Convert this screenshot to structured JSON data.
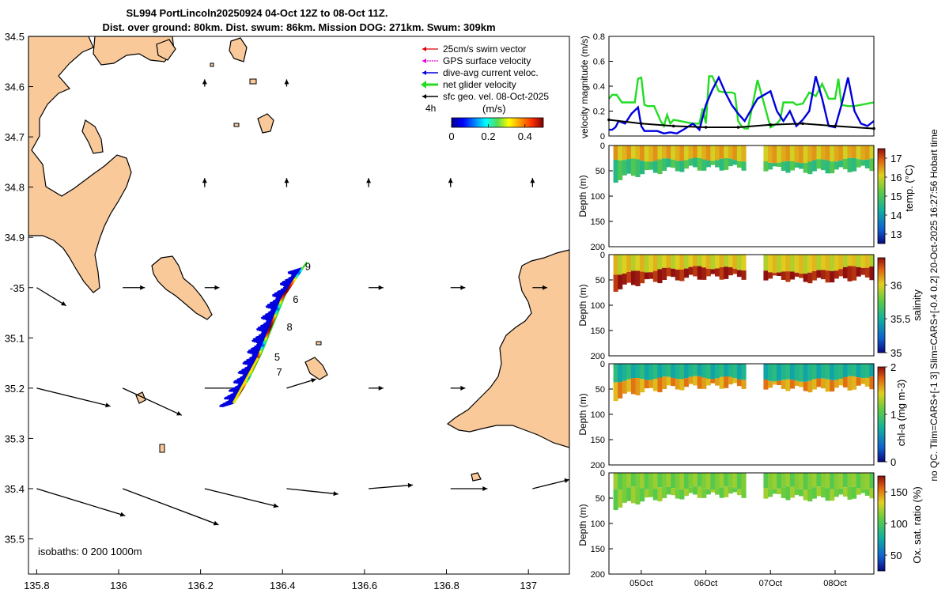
{
  "title": {
    "line1": "SL994 PortLincoln20250924 04-Oct 12Z to 08-Oct 11Z.",
    "line2": "Dist. over ground: 80km. Dist. swum: 86km. Mission DOG: 271km. Swum: 309km"
  },
  "footer_note": "no QC. Tlim=CARS+[-1 3] Slim=CARS+[-0.4 0.2] 20-Oct-2025 16:27:56 Hobart time",
  "colors": {
    "land": "#f9c99a",
    "red": "#e00000",
    "magenta": "#e000e0",
    "blue": "#0000dd",
    "green": "#22dd22",
    "black": "#000000",
    "yellow": "#f0e000"
  },
  "chart_data": [
    {
      "type": "map",
      "name": "track-map",
      "xlim": [
        135.78,
        137.1
      ],
      "ylim": [
        -35.57,
        -34.5
      ],
      "xticks": [
        135.8,
        136,
        136.2,
        136.4,
        136.6,
        136.8,
        137
      ],
      "xtick_labels": [
        "135.8",
        "136",
        "136.2",
        "136.4",
        "136.6",
        "136.8",
        "137"
      ],
      "yticks": [
        -34.5,
        -34.6,
        -34.7,
        -34.8,
        -34.9,
        -35.0,
        -35.1,
        -35.2,
        -35.3,
        -35.4,
        -35.5
      ],
      "ytick_labels": [
        "34.5",
        "34.6",
        "34.7",
        "34.8",
        "34.9",
        "-35",
        "35.1",
        "35.2",
        "35.3",
        "35.4",
        "35.5"
      ],
      "legend": {
        "items": [
          {
            "label": "25cm/s swim vector",
            "color": "red"
          },
          {
            "label": "GPS surface velocity",
            "color": "magenta"
          },
          {
            "label": "dive-avg current veloc.",
            "color": "blue"
          },
          {
            "label": "net glider velocity",
            "color": "green"
          },
          {
            "label": "sfc geo. vel. 08-Oct-2025",
            "color": "black"
          }
        ],
        "tag": "4h",
        "colorbar_title": "(m/s)",
        "colorbar_ticks": [
          "0",
          "0.2",
          "0.4"
        ],
        "colorbar_range": [
          0,
          0.5
        ]
      },
      "isobaths_text": "isobaths: 0   200  1000m",
      "track": [
        [
          136.28,
          -35.23
        ],
        [
          136.31,
          -35.19
        ],
        [
          136.34,
          -35.14
        ],
        [
          136.37,
          -35.08
        ],
        [
          136.4,
          -35.02
        ],
        [
          136.45,
          -34.96
        ]
      ],
      "day_labels": [
        {
          "text": "9",
          "lon": 136.455,
          "lat": -34.965
        },
        {
          "text": "6",
          "lon": 136.425,
          "lat": -35.03
        },
        {
          "text": "8",
          "lon": 136.41,
          "lat": -35.085
        },
        {
          "text": "5",
          "lon": 136.38,
          "lat": -35.145
        },
        {
          "text": "7",
          "lon": 136.385,
          "lat": -35.175
        }
      ],
      "geo_vectors": [
        {
          "lon": 135.8,
          "lat": -35.0,
          "u": 0.02,
          "v": -0.01
        },
        {
          "lon": 136.01,
          "lat": -35.0,
          "u": 0.015,
          "v": 0.0
        },
        {
          "lon": 136.21,
          "lat": -35.0,
          "u": 0.01,
          "v": 0.0
        },
        {
          "lon": 136.61,
          "lat": -35.0,
          "u": 0.01,
          "v": 0.0
        },
        {
          "lon": 136.81,
          "lat": -35.0,
          "u": 0.01,
          "v": 0.0
        },
        {
          "lon": 137.01,
          "lat": -35.0,
          "u": 0.01,
          "v": 0.0
        },
        {
          "lon": 135.8,
          "lat": -35.2,
          "u": 0.05,
          "v": -0.01
        },
        {
          "lon": 136.01,
          "lat": -35.2,
          "u": 0.04,
          "v": -0.015
        },
        {
          "lon": 136.21,
          "lat": -35.2,
          "u": 0.025,
          "v": 0.0
        },
        {
          "lon": 136.41,
          "lat": -35.2,
          "u": 0.02,
          "v": 0.005
        },
        {
          "lon": 136.61,
          "lat": -35.2,
          "u": 0.01,
          "v": 0.0
        },
        {
          "lon": 136.81,
          "lat": -35.2,
          "u": 0.01,
          "v": 0.0
        },
        {
          "lon": 135.8,
          "lat": -35.4,
          "u": 0.06,
          "v": -0.015
        },
        {
          "lon": 136.01,
          "lat": -35.4,
          "u": 0.065,
          "v": -0.02
        },
        {
          "lon": 136.21,
          "lat": -35.4,
          "u": 0.05,
          "v": -0.01
        },
        {
          "lon": 136.41,
          "lat": -35.4,
          "u": 0.035,
          "v": -0.003
        },
        {
          "lon": 136.61,
          "lat": -35.4,
          "u": 0.03,
          "v": 0.002
        },
        {
          "lon": 136.81,
          "lat": -35.4,
          "u": 0.025,
          "v": 0.0
        },
        {
          "lon": 137.01,
          "lat": -35.4,
          "u": 0.025,
          "v": 0.005
        },
        {
          "lon": 136.21,
          "lat": -34.8,
          "u": 0.0,
          "v": 0.005
        },
        {
          "lon": 136.41,
          "lat": -34.8,
          "u": 0.0,
          "v": 0.005
        },
        {
          "lon": 136.61,
          "lat": -34.8,
          "u": 0.0,
          "v": 0.005
        },
        {
          "lon": 136.81,
          "lat": -34.8,
          "u": 0.0,
          "v": 0.005
        },
        {
          "lon": 137.01,
          "lat": -34.8,
          "u": 0.0,
          "v": 0.005
        },
        {
          "lon": 136.21,
          "lat": -34.6,
          "u": 0.0,
          "v": 0.004
        },
        {
          "lon": 136.41,
          "lat": -34.6,
          "u": 0.0,
          "v": 0.004
        }
      ]
    },
    {
      "type": "line",
      "name": "velocity-magnitude",
      "ylabel": "velocity magnitude (m/s)",
      "ylim": [
        0,
        0.8
      ],
      "yticks": [
        0,
        0.2,
        0.4,
        0.6,
        0.8
      ],
      "ytick_labels": [
        "0",
        "0.2",
        "0.4",
        "0.6",
        "0.8"
      ],
      "xlim_days": [
        0,
        4.1
      ],
      "series": [
        {
          "name": "net glider velocity",
          "color": "green",
          "x": [
            0,
            0.05,
            0.12,
            0.2,
            0.3,
            0.4,
            0.45,
            0.5,
            0.55,
            0.6,
            0.7,
            0.8,
            0.85,
            0.9,
            0.95,
            1.0,
            1.1,
            1.2,
            1.3,
            1.4,
            1.45,
            1.5,
            1.55,
            1.6,
            1.7,
            1.8,
            1.9,
            1.95,
            2.0,
            2.05,
            2.1,
            2.15,
            2.3,
            2.5,
            2.6,
            2.65,
            2.7,
            2.8,
            2.85,
            2.9,
            3.0,
            3.1,
            3.2,
            3.3,
            3.4,
            3.5,
            3.55,
            3.6,
            3.7,
            3.8,
            3.9,
            4.1
          ],
          "y": [
            0.3,
            0.33,
            0.33,
            0.27,
            0.27,
            0.27,
            0.46,
            0.47,
            0.25,
            0.24,
            0.24,
            0.12,
            0.08,
            0.17,
            0.1,
            0.13,
            0.12,
            0.11,
            0.1,
            0.1,
            0.22,
            0.1,
            0.48,
            0.48,
            0.36,
            0.35,
            0.35,
            0.34,
            0.12,
            0.08,
            0.06,
            0.06,
            0.45,
            0.07,
            0.1,
            0.13,
            0.27,
            0.27,
            0.27,
            0.25,
            0.26,
            0.35,
            0.32,
            0.42,
            0.3,
            0.3,
            0.46,
            0.25,
            0.24,
            0.24,
            0.25,
            0.27
          ]
        },
        {
          "name": "dive-avg current veloc.",
          "color": "blue",
          "x": [
            0,
            0.05,
            0.1,
            0.15,
            0.25,
            0.35,
            0.45,
            0.5,
            0.55,
            0.65,
            0.75,
            0.85,
            0.95,
            1.05,
            1.15,
            1.3,
            1.4,
            1.5,
            1.6,
            1.7,
            1.8,
            1.9,
            2.0,
            2.1,
            2.3,
            2.5,
            2.6,
            2.7,
            2.8,
            2.9,
            3.0,
            3.1,
            3.2,
            3.3,
            3.4,
            3.5,
            3.6,
            3.7,
            3.8,
            3.9,
            4.0,
            4.1
          ],
          "y": [
            0.05,
            0.05,
            0.07,
            0.12,
            0.1,
            0.18,
            0.23,
            0.08,
            0.04,
            0.04,
            0.04,
            0.02,
            0.03,
            0.02,
            0.05,
            0.1,
            0.05,
            0.25,
            0.37,
            0.47,
            0.35,
            0.25,
            0.18,
            0.12,
            0.3,
            0.36,
            0.2,
            0.12,
            0.2,
            0.08,
            0.13,
            0.2,
            0.48,
            0.3,
            0.08,
            0.07,
            0.25,
            0.47,
            0.2,
            0.1,
            0.08,
            0.12
          ]
        },
        {
          "name": "sfc geo. vel.",
          "color": "black",
          "x": [
            0,
            0.5,
            1.0,
            1.5,
            2.0,
            2.5,
            3.0,
            3.5,
            4.1
          ],
          "y": [
            0.13,
            0.1,
            0.08,
            0.07,
            0.07,
            0.09,
            0.1,
            0.08,
            0.06
          ]
        }
      ]
    },
    {
      "type": "heatmap",
      "name": "temperature-section",
      "ylabel": "Depth (m)",
      "ylim": [
        0,
        200
      ],
      "yticks": [
        0,
        50,
        100,
        150,
        200
      ],
      "ytick_labels": [
        "0",
        "50",
        "100",
        "150",
        "200"
      ],
      "colorbar_label": "temp. (°C)",
      "clim": [
        12.5,
        17.5
      ],
      "cticks": [
        13,
        14,
        15,
        16,
        17
      ],
      "ctick_labels": [
        "13",
        "14",
        "15",
        "16",
        "17"
      ],
      "layer_values": [
        16.3,
        14.8
      ],
      "thermocline_depth_m": [
        25,
        30,
        28,
        27,
        28,
        30,
        34,
        30,
        28,
        24
      ],
      "bottom_depth_m": [
        70,
        55,
        48,
        45,
        44,
        44,
        48,
        52,
        48,
        44
      ]
    },
    {
      "type": "heatmap",
      "name": "salinity-section",
      "ylabel": "Depth (m)",
      "ylim": [
        0,
        200
      ],
      "yticks": [
        0,
        50,
        100,
        150,
        200
      ],
      "ytick_labels": [
        "0",
        "50",
        "100",
        "150",
        "200"
      ],
      "colorbar_label": "salinity",
      "clim": [
        35.0,
        36.4
      ],
      "cticks": [
        35,
        35.5,
        36
      ],
      "ctick_labels": [
        "35",
        "35.5",
        "36"
      ],
      "layer_values": [
        36.0,
        36.38
      ],
      "thermocline_depth_m": [
        38,
        34,
        28,
        25,
        27,
        30,
        36,
        34,
        26,
        22
      ],
      "bottom_depth_m": [
        70,
        55,
        48,
        45,
        44,
        44,
        48,
        52,
        48,
        44
      ]
    },
    {
      "type": "heatmap",
      "name": "chla-section",
      "ylabel": "Depth (m)",
      "ylim": [
        0,
        200
      ],
      "yticks": [
        0,
        50,
        100,
        150,
        200
      ],
      "ytick_labels": [
        "0",
        "50",
        "100",
        "150",
        "200"
      ],
      "colorbar_label": "chl-a (mg m-3)",
      "clim": [
        0,
        2
      ],
      "cticks": [
        0,
        1,
        2
      ],
      "ctick_labels": [
        "0",
        "1",
        "2"
      ],
      "layer_values": [
        0.75,
        1.6
      ],
      "thermocline_depth_m": [
        35,
        30,
        28,
        27,
        28,
        30,
        34,
        32,
        28,
        24
      ],
      "bottom_depth_m": [
        70,
        55,
        48,
        45,
        44,
        44,
        48,
        52,
        48,
        44
      ]
    },
    {
      "type": "heatmap",
      "name": "oxygen-section",
      "ylabel": "Depth (m)",
      "ylim": [
        0,
        200
      ],
      "yticks": [
        0,
        50,
        100,
        150,
        200
      ],
      "ytick_labels": [
        "0",
        "50",
        "100",
        "150",
        "200"
      ],
      "colorbar_label": "Ox. sat. ratio (%)",
      "clim": [
        25,
        175
      ],
      "cticks": [
        50,
        100,
        150
      ],
      "ctick_labels": [
        "50",
        "100",
        "150"
      ],
      "layer_values": [
        112,
        112
      ],
      "thermocline_depth_m": [
        30,
        30,
        30,
        30,
        30,
        30,
        30,
        30,
        30,
        30
      ],
      "bottom_depth_m": [
        70,
        55,
        48,
        45,
        44,
        44,
        48,
        52,
        48,
        44
      ],
      "xticks_days": [
        0.5,
        1.5,
        2.5,
        3.5
      ],
      "xtick_labels": [
        "05Oct",
        "06Oct",
        "07Oct",
        "08Oct"
      ]
    }
  ]
}
